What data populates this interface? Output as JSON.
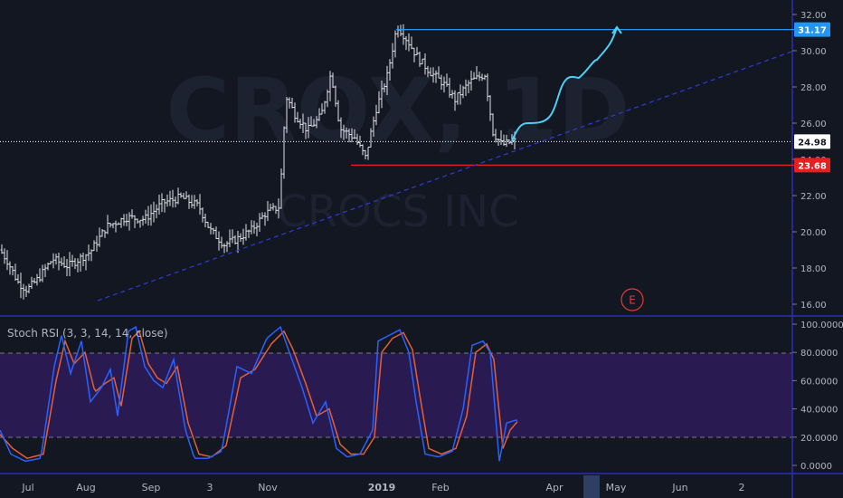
{
  "watermark": {
    "symbol": "CROX, 1D",
    "name": "CROCS INC"
  },
  "price_pane": {
    "y_ticks": [
      "16.00",
      "18.00",
      "20.00",
      "22.00",
      "24.00",
      "26.00",
      "28.00",
      "30.00",
      "32.00"
    ],
    "ylim": [
      16,
      32
    ],
    "badges": [
      {
        "id": "resistance",
        "text": "31.17",
        "value": 31.17,
        "color": "#2196f3"
      },
      {
        "id": "last",
        "text": "24.98",
        "value": 24.98,
        "color": "#ffffff"
      },
      {
        "id": "support",
        "text": "23.68",
        "value": 23.68,
        "color": "#e91e1e"
      }
    ],
    "earnings_marker": "E"
  },
  "indicator_pane": {
    "label": "Stoch RSI (3, 3, 14, 14, close)",
    "y_ticks": [
      "0.0000",
      "20.0000",
      "40.0000",
      "60.0000",
      "80.0000",
      "100.0000"
    ],
    "ylim": [
      0,
      100
    ],
    "band": [
      20,
      80
    ]
  },
  "x_axis": {
    "labels": [
      {
        "text": "Jul",
        "bold": false
      },
      {
        "text": "Aug",
        "bold": false
      },
      {
        "text": "Sep",
        "bold": false
      },
      {
        "text": "3",
        "bold": false
      },
      {
        "text": "Nov",
        "bold": false
      },
      {
        "text": "2019",
        "bold": true
      },
      {
        "text": "Feb",
        "bold": false
      },
      {
        "text": "Apr",
        "bold": false
      },
      {
        "text": "May",
        "bold": false
      },
      {
        "text": "Jun",
        "bold": false
      },
      {
        "text": "2",
        "bold": false
      }
    ]
  },
  "colors": {
    "background": "#131722",
    "bars": "#e0e3eb",
    "resistance": "#2196f3",
    "support": "#e91e1e",
    "trendline": "#2a3ac8",
    "projection": "#4dd0f7",
    "stoch_k": "#2962ff",
    "stoch_d": "#e45f35",
    "band_fill": "#2a1a52",
    "pane_border": "#2a2fb8"
  },
  "chart_data": {
    "type": "ohlc",
    "symbol": "CROX",
    "timeframe": "1D",
    "price_series_anchors": [
      {
        "t": 0,
        "v": 19.0
      },
      {
        "t": 8,
        "v": 18.4
      },
      {
        "t": 20,
        "v": 17.2
      },
      {
        "t": 30,
        "v": 16.8
      },
      {
        "t": 42,
        "v": 17.4
      },
      {
        "t": 58,
        "v": 18.5
      },
      {
        "t": 75,
        "v": 18.1
      },
      {
        "t": 100,
        "v": 18.9
      },
      {
        "t": 118,
        "v": 20.3
      },
      {
        "t": 140,
        "v": 20.8
      },
      {
        "t": 160,
        "v": 20.7
      },
      {
        "t": 180,
        "v": 21.6
      },
      {
        "t": 200,
        "v": 21.9
      },
      {
        "t": 220,
        "v": 21.4
      },
      {
        "t": 232,
        "v": 20.1
      },
      {
        "t": 248,
        "v": 19.3
      },
      {
        "t": 262,
        "v": 19.6
      },
      {
        "t": 278,
        "v": 20.1
      },
      {
        "t": 293,
        "v": 21.0
      },
      {
        "t": 309,
        "v": 21.4
      },
      {
        "t": 316,
        "v": 27.5
      },
      {
        "t": 326,
        "v": 26.5
      },
      {
        "t": 340,
        "v": 25.6
      },
      {
        "t": 355,
        "v": 26.4
      },
      {
        "t": 366,
        "v": 28.8
      },
      {
        "t": 376,
        "v": 25.7
      },
      {
        "t": 392,
        "v": 25.2
      },
      {
        "t": 404,
        "v": 24.1
      },
      {
        "t": 416,
        "v": 26.8
      },
      {
        "t": 428,
        "v": 28.6
      },
      {
        "t": 439,
        "v": 31.4
      },
      {
        "t": 450,
        "v": 30.6
      },
      {
        "t": 462,
        "v": 29.6
      },
      {
        "t": 476,
        "v": 28.8
      },
      {
        "t": 490,
        "v": 28.2
      },
      {
        "t": 503,
        "v": 27.3
      },
      {
        "t": 520,
        "v": 28.3
      },
      {
        "t": 536,
        "v": 28.7
      },
      {
        "t": 545,
        "v": 25.5
      },
      {
        "t": 555,
        "v": 24.8
      },
      {
        "t": 568,
        "v": 25.0
      }
    ],
    "stoch_k_anchors": [
      {
        "t": 0,
        "v": 25
      },
      {
        "t": 12,
        "v": 8
      },
      {
        "t": 28,
        "v": 3
      },
      {
        "t": 45,
        "v": 5
      },
      {
        "t": 60,
        "v": 70
      },
      {
        "t": 68,
        "v": 92
      },
      {
        "t": 78,
        "v": 65
      },
      {
        "t": 90,
        "v": 88
      },
      {
        "t": 100,
        "v": 45
      },
      {
        "t": 112,
        "v": 55
      },
      {
        "t": 122,
        "v": 68
      },
      {
        "t": 130,
        "v": 35
      },
      {
        "t": 142,
        "v": 95
      },
      {
        "t": 150,
        "v": 98
      },
      {
        "t": 160,
        "v": 70
      },
      {
        "t": 170,
        "v": 60
      },
      {
        "t": 180,
        "v": 55
      },
      {
        "t": 192,
        "v": 75
      },
      {
        "t": 205,
        "v": 25
      },
      {
        "t": 215,
        "v": 5
      },
      {
        "t": 230,
        "v": 5
      },
      {
        "t": 245,
        "v": 10
      },
      {
        "t": 262,
        "v": 70
      },
      {
        "t": 278,
        "v": 65
      },
      {
        "t": 295,
        "v": 90
      },
      {
        "t": 310,
        "v": 98
      },
      {
        "t": 320,
        "v": 80
      },
      {
        "t": 334,
        "v": 55
      },
      {
        "t": 346,
        "v": 30
      },
      {
        "t": 360,
        "v": 45
      },
      {
        "t": 372,
        "v": 12
      },
      {
        "t": 384,
        "v": 6
      },
      {
        "t": 398,
        "v": 8
      },
      {
        "t": 412,
        "v": 25
      },
      {
        "t": 418,
        "v": 88
      },
      {
        "t": 430,
        "v": 92
      },
      {
        "t": 442,
        "v": 96
      },
      {
        "t": 452,
        "v": 80
      },
      {
        "t": 460,
        "v": 45
      },
      {
        "t": 470,
        "v": 8
      },
      {
        "t": 485,
        "v": 6
      },
      {
        "t": 500,
        "v": 10
      },
      {
        "t": 512,
        "v": 40
      },
      {
        "t": 522,
        "v": 85
      },
      {
        "t": 534,
        "v": 88
      },
      {
        "t": 542,
        "v": 80
      },
      {
        "t": 552,
        "v": 3
      },
      {
        "t": 560,
        "v": 30
      },
      {
        "t": 570,
        "v": 32
      }
    ],
    "stoch_d_anchors": [
      {
        "t": 0,
        "v": 22
      },
      {
        "t": 14,
        "v": 12
      },
      {
        "t": 30,
        "v": 5
      },
      {
        "t": 48,
        "v": 8
      },
      {
        "t": 62,
        "v": 60
      },
      {
        "t": 72,
        "v": 88
      },
      {
        "t": 82,
        "v": 72
      },
      {
        "t": 94,
        "v": 80
      },
      {
        "t": 105,
        "v": 52
      },
      {
        "t": 116,
        "v": 58
      },
      {
        "t": 126,
        "v": 62
      },
      {
        "t": 134,
        "v": 42
      },
      {
        "t": 146,
        "v": 90
      },
      {
        "t": 154,
        "v": 95
      },
      {
        "t": 164,
        "v": 72
      },
      {
        "t": 174,
        "v": 62
      },
      {
        "t": 184,
        "v": 58
      },
      {
        "t": 196,
        "v": 70
      },
      {
        "t": 208,
        "v": 30
      },
      {
        "t": 220,
        "v": 8
      },
      {
        "t": 234,
        "v": 6
      },
      {
        "t": 250,
        "v": 14
      },
      {
        "t": 266,
        "v": 62
      },
      {
        "t": 282,
        "v": 68
      },
      {
        "t": 300,
        "v": 86
      },
      {
        "t": 314,
        "v": 95
      },
      {
        "t": 324,
        "v": 82
      },
      {
        "t": 338,
        "v": 58
      },
      {
        "t": 350,
        "v": 35
      },
      {
        "t": 364,
        "v": 40
      },
      {
        "t": 376,
        "v": 15
      },
      {
        "t": 388,
        "v": 8
      },
      {
        "t": 402,
        "v": 8
      },
      {
        "t": 414,
        "v": 20
      },
      {
        "t": 422,
        "v": 80
      },
      {
        "t": 434,
        "v": 90
      },
      {
        "t": 446,
        "v": 94
      },
      {
        "t": 456,
        "v": 82
      },
      {
        "t": 464,
        "v": 50
      },
      {
        "t": 474,
        "v": 12
      },
      {
        "t": 488,
        "v": 8
      },
      {
        "t": 504,
        "v": 12
      },
      {
        "t": 516,
        "v": 35
      },
      {
        "t": 526,
        "v": 80
      },
      {
        "t": 538,
        "v": 86
      },
      {
        "t": 546,
        "v": 75
      },
      {
        "t": 556,
        "v": 12
      },
      {
        "t": 564,
        "v": 25
      },
      {
        "t": 572,
        "v": 31
      }
    ],
    "annotations": [
      {
        "type": "horizontal_segment",
        "name": "resistance",
        "value": 31.17,
        "from_t": 438,
        "to_t": 878
      },
      {
        "type": "horizontal_segment",
        "name": "support",
        "value": 23.68,
        "from_t": 388,
        "to_t": 878
      },
      {
        "type": "trendline",
        "name": "rising support",
        "from": {
          "t": 108,
          "v": 16.2
        },
        "to": {
          "t": 878,
          "v": 30.0
        }
      },
      {
        "type": "projection_curve",
        "name": "bullish path",
        "points": [
          {
            "t": 566,
            "v": 25.0
          },
          {
            "t": 585,
            "v": 26.0
          },
          {
            "t": 618,
            "v": 26.3
          },
          {
            "t": 640,
            "v": 28.5
          },
          {
            "t": 660,
            "v": 29.5
          },
          {
            "t": 682,
            "v": 31.3
          }
        ]
      }
    ]
  }
}
